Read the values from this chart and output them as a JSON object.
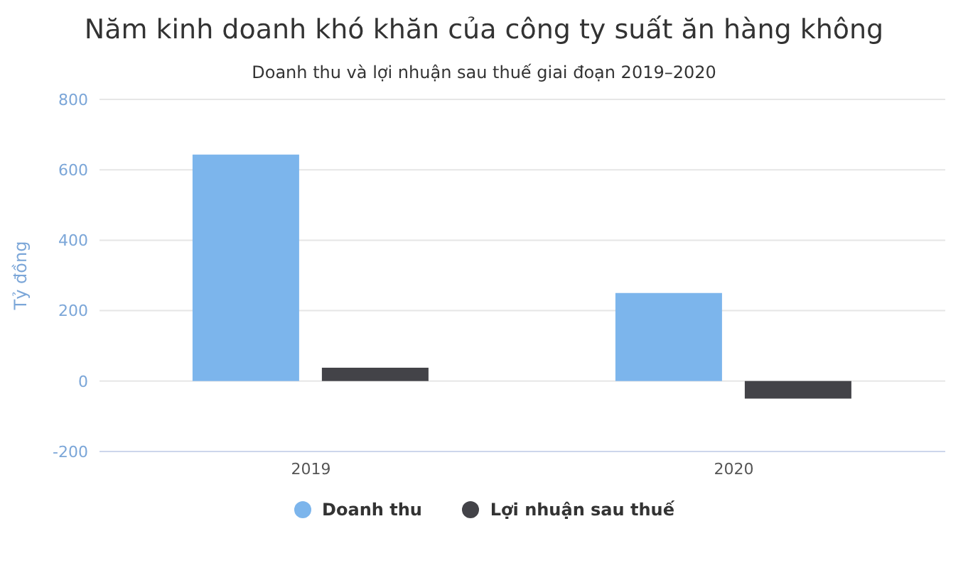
{
  "chart_data": {
    "type": "bar",
    "title": "Năm kinh doanh khó khăn của công ty suất ăn hàng không",
    "subtitle": "Doanh thu và lợi nhuận sau thuế giai đoạn 2019–2020",
    "ylabel": "Tỷ đồng",
    "categories": [
      "2019",
      "2020"
    ],
    "series": [
      {
        "name": "Doanh thu",
        "color": "#7cb5ec",
        "values": [
          643,
          250
        ]
      },
      {
        "name": "Lợi nhuận sau thuế",
        "color": "#434348",
        "values": [
          38,
          -50
        ]
      }
    ],
    "ylim": [
      -200,
      800
    ],
    "yticks": [
      -200,
      0,
      200,
      400,
      600,
      800
    ],
    "grid": "y",
    "legend": "bottom",
    "marker": "circle"
  }
}
